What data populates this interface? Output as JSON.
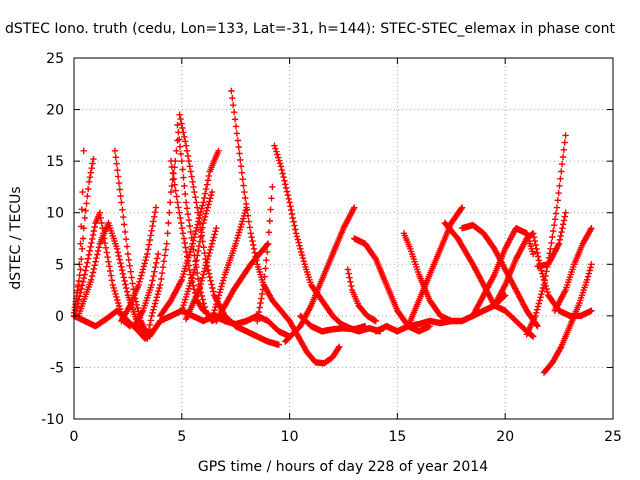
{
  "chart_data": {
    "type": "scatter",
    "title": "dSTEC Iono. truth (cedu, Lon=133, Lat=-31, h=144): STEC-STEC_elemax in phase cont",
    "xlabel": "GPS time / hours of day 228 of year 2014",
    "ylabel": "dSTEC  / TECUs",
    "xlim": [
      0,
      25
    ],
    "ylim": [
      -10,
      25
    ],
    "xticks": [
      0,
      5,
      10,
      15,
      20,
      25
    ],
    "yticks": [
      -10,
      -5,
      0,
      5,
      10,
      15,
      20,
      25
    ],
    "grid": true,
    "marker": "+",
    "color": "#ff0000",
    "series": [
      {
        "points": [
          [
            0.0,
            0.0
          ],
          [
            0.3,
            4.5
          ],
          [
            0.5,
            9.5
          ],
          [
            0.7,
            13.0
          ],
          [
            0.9,
            15.2
          ]
        ]
      },
      {
        "points": [
          [
            0.0,
            0.3
          ],
          [
            0.2,
            3.0
          ],
          [
            0.3,
            7.0
          ],
          [
            0.4,
            12.0
          ],
          [
            0.45,
            16.0
          ]
        ]
      },
      {
        "points": [
          [
            0.1,
            0.5
          ],
          [
            0.5,
            4.0
          ],
          [
            1.0,
            9.0
          ],
          [
            1.2,
            10.0
          ],
          [
            1.4,
            7.5
          ],
          [
            1.8,
            3.0
          ],
          [
            2.3,
            -0.5
          ],
          [
            2.6,
            -1.0
          ]
        ]
      },
      {
        "points": [
          [
            0.2,
            0.0
          ],
          [
            0.8,
            3.5
          ],
          [
            1.2,
            7.0
          ],
          [
            1.6,
            9.0
          ],
          [
            2.0,
            6.5
          ],
          [
            2.5,
            2.0
          ],
          [
            3.0,
            -1.0
          ],
          [
            3.4,
            -2.0
          ]
        ]
      },
      {
        "points": [
          [
            1.9,
            16.0
          ],
          [
            2.2,
            11.0
          ],
          [
            2.5,
            6.0
          ],
          [
            2.8,
            2.0
          ],
          [
            3.1,
            -0.5
          ],
          [
            3.4,
            -1.8
          ]
        ]
      },
      {
        "points": [
          [
            0.0,
            0.0
          ],
          [
            0.5,
            -0.5
          ],
          [
            1.0,
            -1.0
          ],
          [
            1.5,
            -0.3
          ],
          [
            2.0,
            0.5
          ],
          [
            2.5,
            -0.5
          ],
          [
            3.0,
            -1.5
          ],
          [
            3.3,
            -2.2
          ],
          [
            3.6,
            -1.5
          ]
        ]
      },
      {
        "points": [
          [
            2.2,
            -0.5
          ],
          [
            2.6,
            1.0
          ],
          [
            3.0,
            3.0
          ],
          [
            3.4,
            6.0
          ],
          [
            3.8,
            10.5
          ]
        ]
      },
      {
        "points": [
          [
            2.8,
            -1.0
          ],
          [
            3.2,
            0.5
          ],
          [
            3.6,
            3.0
          ],
          [
            3.9,
            6.0
          ]
        ]
      },
      {
        "points": [
          [
            3.5,
            -2.0
          ],
          [
            4.0,
            -0.5
          ],
          [
            4.5,
            0.0
          ],
          [
            5.0,
            0.5
          ],
          [
            5.5,
            0.0
          ],
          [
            6.0,
            -0.5
          ],
          [
            6.5,
            0.0
          ],
          [
            7.0,
            -0.5
          ],
          [
            7.5,
            -0.8
          ],
          [
            8.0,
            -0.5
          ],
          [
            8.5,
            0.0
          ],
          [
            9.0,
            -0.5
          ],
          [
            9.5,
            -1.5
          ],
          [
            10.0,
            -2.0
          ]
        ]
      },
      {
        "points": [
          [
            3.4,
            -2.2
          ],
          [
            3.6,
            0.0
          ],
          [
            4.0,
            3.0
          ],
          [
            4.3,
            7.0
          ],
          [
            4.5,
            12.0
          ],
          [
            4.7,
            15.0
          ],
          [
            4.8,
            17.0
          ]
        ]
      },
      {
        "points": [
          [
            4.8,
            18.5
          ],
          [
            5.0,
            15.0
          ],
          [
            5.2,
            11.0
          ],
          [
            5.5,
            7.0
          ],
          [
            5.8,
            3.0
          ],
          [
            6.1,
            0.5
          ],
          [
            6.4,
            -0.5
          ],
          [
            6.8,
            0.0
          ]
        ]
      },
      {
        "points": [
          [
            4.5,
            15.0
          ],
          [
            4.8,
            11.0
          ],
          [
            5.1,
            7.5
          ],
          [
            5.4,
            4.0
          ],
          [
            5.7,
            1.5
          ],
          [
            6.0,
            0.5
          ]
        ]
      },
      {
        "points": [
          [
            4.9,
            19.5
          ],
          [
            5.2,
            16.5
          ],
          [
            5.5,
            13.0
          ],
          [
            5.8,
            9.5
          ],
          [
            6.1,
            5.5
          ],
          [
            6.5,
            2.0
          ],
          [
            7.0,
            0.0
          ],
          [
            7.5,
            -1.0
          ],
          [
            8.0,
            -1.5
          ],
          [
            8.5,
            -2.0
          ],
          [
            9.0,
            -2.5
          ],
          [
            9.5,
            -2.8
          ]
        ]
      },
      {
        "points": [
          [
            4.0,
            0.0
          ],
          [
            4.5,
            1.5
          ],
          [
            5.0,
            3.5
          ],
          [
            5.5,
            7.0
          ],
          [
            6.0,
            11.0
          ],
          [
            6.3,
            14.0
          ],
          [
            6.7,
            16.0
          ]
        ]
      },
      {
        "points": [
          [
            5.0,
            0.5
          ],
          [
            5.6,
            4.5
          ],
          [
            6.0,
            9.0
          ],
          [
            6.4,
            12.0
          ]
        ]
      },
      {
        "points": [
          [
            5.2,
            -0.3
          ],
          [
            5.8,
            2.5
          ],
          [
            6.2,
            5.5
          ],
          [
            6.6,
            8.5
          ]
        ]
      },
      {
        "points": [
          [
            7.3,
            21.8
          ],
          [
            7.6,
            17.0
          ],
          [
            7.9,
            12.0
          ],
          [
            8.2,
            8.0
          ],
          [
            8.5,
            5.0
          ],
          [
            8.8,
            3.0
          ],
          [
            9.2,
            1.5
          ],
          [
            9.6,
            0.5
          ],
          [
            10.0,
            -0.5
          ],
          [
            10.4,
            -2.0
          ],
          [
            10.8,
            -3.5
          ],
          [
            11.2,
            -4.5
          ],
          [
            11.6,
            -4.6
          ],
          [
            12.0,
            -4.0
          ],
          [
            12.3,
            -3.0
          ]
        ]
      },
      {
        "points": [
          [
            6.4,
            -0.3
          ],
          [
            7.0,
            4.0
          ],
          [
            7.5,
            7.0
          ],
          [
            8.0,
            10.5
          ]
        ]
      },
      {
        "points": [
          [
            6.6,
            -0.5
          ],
          [
            7.4,
            2.5
          ],
          [
            8.2,
            5.0
          ],
          [
            9.0,
            7.0
          ]
        ]
      },
      {
        "points": [
          [
            8.5,
            -0.5
          ],
          [
            8.8,
            3.0
          ],
          [
            9.0,
            7.0
          ],
          [
            9.2,
            12.5
          ]
        ]
      },
      {
        "points": [
          [
            9.3,
            16.5
          ],
          [
            9.6,
            14.5
          ],
          [
            10.0,
            11.0
          ],
          [
            10.3,
            8.0
          ],
          [
            10.7,
            5.0
          ],
          [
            11.0,
            3.0
          ],
          [
            11.5,
            1.5
          ],
          [
            12.0,
            0.0
          ],
          [
            12.4,
            -0.8
          ],
          [
            12.8,
            -1.2
          ],
          [
            13.2,
            -1.5
          ],
          [
            13.7,
            -1.2
          ],
          [
            14.2,
            -1.5
          ]
        ]
      },
      {
        "points": [
          [
            9.8,
            -2.5
          ],
          [
            10.5,
            -1.0
          ],
          [
            11.0,
            1.0
          ],
          [
            11.5,
            3.5
          ],
          [
            12.0,
            6.0
          ],
          [
            12.5,
            8.5
          ],
          [
            13.0,
            10.5
          ]
        ]
      },
      {
        "points": [
          [
            10.5,
            0.0
          ],
          [
            11.0,
            -1.0
          ],
          [
            11.5,
            -1.5
          ],
          [
            12.0,
            -1.3
          ],
          [
            12.5,
            -1.2
          ],
          [
            13.0,
            -1.3
          ],
          [
            13.5,
            -1.0
          ]
        ]
      },
      {
        "points": [
          [
            12.7,
            4.5
          ],
          [
            12.9,
            2.5
          ],
          [
            13.2,
            1.0
          ],
          [
            13.6,
            0.0
          ],
          [
            14.0,
            -0.5
          ]
        ]
      },
      {
        "points": [
          [
            13.0,
            7.5
          ],
          [
            13.5,
            7.0
          ],
          [
            14.0,
            5.5
          ],
          [
            14.5,
            3.0
          ],
          [
            15.0,
            0.5
          ],
          [
            15.5,
            -1.0
          ],
          [
            16.0,
            -1.5
          ],
          [
            16.5,
            -1.0
          ]
        ]
      },
      {
        "points": [
          [
            14.0,
            -1.5
          ],
          [
            14.5,
            -1.0
          ],
          [
            15.0,
            -1.5
          ],
          [
            15.5,
            -1.0
          ],
          [
            16.0,
            -0.8
          ],
          [
            16.5,
            -0.5
          ],
          [
            17.0,
            -0.7
          ],
          [
            17.5,
            -0.5
          ],
          [
            18.0,
            -0.5
          ],
          [
            18.5,
            0.0
          ],
          [
            19.0,
            0.5
          ],
          [
            19.5,
            1.0
          ],
          [
            20.0,
            2.0
          ]
        ]
      },
      {
        "points": [
          [
            15.3,
            8.0
          ],
          [
            15.6,
            6.5
          ],
          [
            16.0,
            4.0
          ],
          [
            16.5,
            1.5
          ],
          [
            17.0,
            0.0
          ],
          [
            17.5,
            -0.5
          ]
        ]
      },
      {
        "points": [
          [
            15.5,
            -1.0
          ],
          [
            16.0,
            1.5
          ],
          [
            16.5,
            4.0
          ],
          [
            17.0,
            6.5
          ],
          [
            17.5,
            9.0
          ],
          [
            18.0,
            10.5
          ]
        ]
      },
      {
        "points": [
          [
            17.2,
            9.0
          ],
          [
            17.8,
            7.5
          ],
          [
            18.5,
            5.0
          ],
          [
            19.0,
            3.0
          ],
          [
            19.5,
            1.0
          ],
          [
            20.0,
            0.5
          ],
          [
            20.5,
            -0.5
          ],
          [
            21.0,
            -1.5
          ],
          [
            21.3,
            -2.0
          ]
        ]
      },
      {
        "points": [
          [
            18.0,
            8.5
          ],
          [
            18.5,
            8.8
          ],
          [
            19.0,
            8.0
          ],
          [
            19.5,
            6.5
          ],
          [
            20.0,
            4.5
          ],
          [
            20.5,
            2.5
          ],
          [
            21.0,
            0.5
          ],
          [
            21.5,
            -1.0
          ]
        ]
      },
      {
        "points": [
          [
            18.5,
            0.0
          ],
          [
            19.0,
            2.0
          ],
          [
            19.5,
            4.0
          ],
          [
            20.0,
            6.5
          ],
          [
            20.5,
            8.5
          ],
          [
            21.0,
            8.0
          ],
          [
            21.3,
            6.0
          ]
        ]
      },
      {
        "points": [
          [
            19.5,
            1.0
          ],
          [
            20.0,
            3.0
          ],
          [
            20.5,
            5.5
          ],
          [
            21.0,
            7.5
          ],
          [
            21.3,
            8.0
          ],
          [
            21.6,
            5.0
          ],
          [
            22.0,
            2.0
          ],
          [
            22.5,
            0.5
          ]
        ]
      },
      {
        "points": [
          [
            21.0,
            -1.8
          ],
          [
            21.4,
            0.0
          ],
          [
            21.8,
            3.0
          ],
          [
            22.1,
            6.5
          ],
          [
            22.4,
            10.5
          ],
          [
            22.6,
            14.0
          ],
          [
            22.8,
            17.5
          ]
        ]
      },
      {
        "points": [
          [
            21.5,
            4.8
          ],
          [
            22.0,
            5.0
          ],
          [
            22.5,
            7.0
          ],
          [
            22.8,
            10.0
          ]
        ]
      },
      {
        "points": [
          [
            21.8,
            -5.5
          ],
          [
            22.2,
            -4.5
          ],
          [
            22.6,
            -3.0
          ],
          [
            23.0,
            -1.0
          ],
          [
            23.4,
            1.0
          ],
          [
            23.8,
            3.5
          ],
          [
            24.0,
            5.0
          ]
        ]
      },
      {
        "points": [
          [
            22.3,
            0.5
          ],
          [
            22.8,
            2.5
          ],
          [
            23.2,
            5.0
          ],
          [
            23.6,
            7.0
          ],
          [
            24.0,
            8.5
          ]
        ]
      },
      {
        "points": [
          [
            22.5,
            0.5
          ],
          [
            23.0,
            0.0
          ],
          [
            23.5,
            0.0
          ],
          [
            24.0,
            0.5
          ]
        ]
      }
    ]
  }
}
